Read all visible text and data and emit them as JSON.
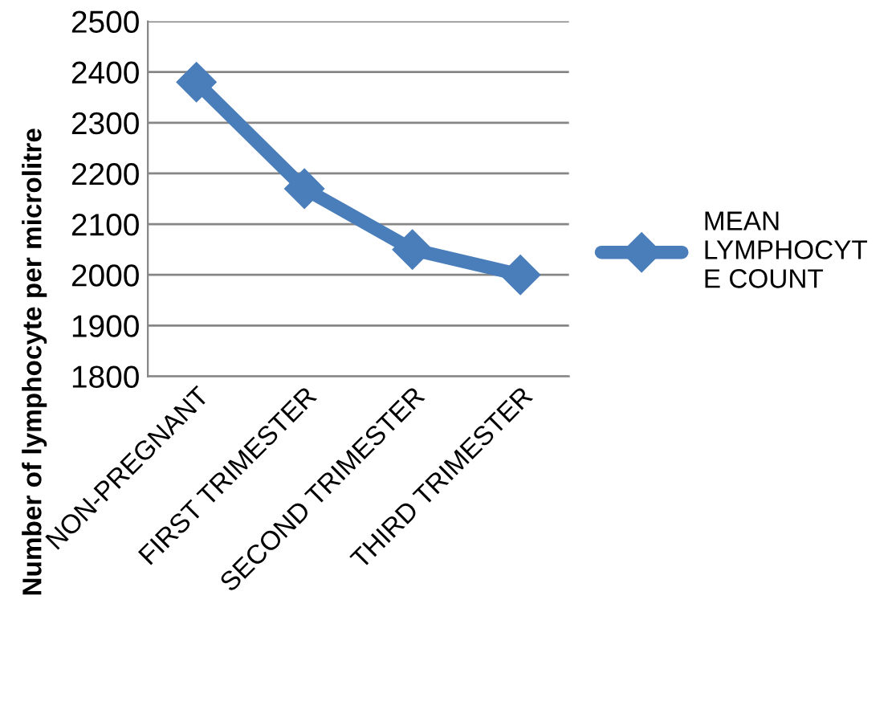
{
  "chart_data": {
    "type": "line",
    "ylabel": "Number of lymphocyte per microlitre",
    "categories": [
      "NON-PREGNANT",
      "FIRST TRIMESTER",
      "SECOND TRIMESTER",
      "THIRD TRIMESTER"
    ],
    "series": [
      {
        "name": "MEAN LYMPHOCYTE COUNT",
        "color": "#4a7ebb",
        "values": [
          2380,
          2170,
          2050,
          2000
        ]
      }
    ],
    "ylim": [
      1800,
      2500
    ],
    "yticks": [
      1800,
      1900,
      2000,
      2100,
      2200,
      2300,
      2400,
      2500
    ],
    "grid": "y",
    "legend": "right",
    "marker": "diamond",
    "line_style": "solid"
  }
}
